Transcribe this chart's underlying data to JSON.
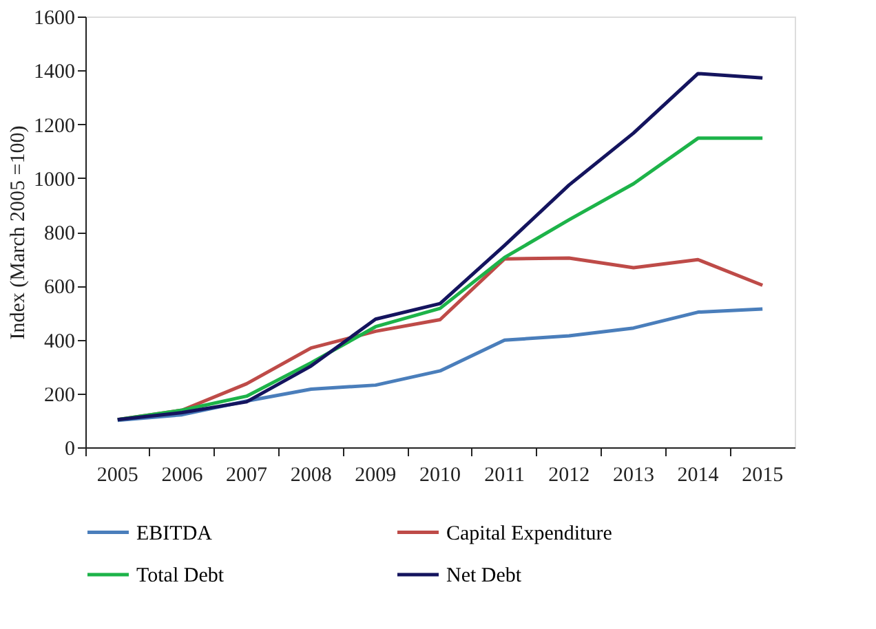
{
  "chart_data": {
    "type": "line",
    "ylabel": "Index (March 2005 =100)",
    "categories": [
      "2005",
      "2006",
      "2007",
      "2008",
      "2009",
      "2010",
      "2011",
      "2012",
      "2013",
      "2014",
      "2015"
    ],
    "ylim": [
      0,
      1600
    ],
    "yticks": [
      0,
      200,
      400,
      600,
      800,
      1000,
      1200,
      1400,
      1600
    ],
    "grid": false,
    "legend": "bottom",
    "marker": "none",
    "line_style": "solid",
    "series": [
      {
        "name": "EBITDA",
        "color": "#4a7ebb",
        "values": [
          100,
          121,
          172,
          216,
          231,
          284,
          398,
          414,
          443,
          502,
          514
        ]
      },
      {
        "name": "Capital Expenditure",
        "color": "#be4b48",
        "values": [
          103,
          138,
          236,
          369,
          431,
          474,
          700,
          703,
          667,
          697,
          602
        ]
      },
      {
        "name": "Total Debt",
        "color": "#1db349",
        "values": [
          103,
          138,
          190,
          314,
          448,
          516,
          705,
          845,
          979,
          1148,
          1148
        ]
      },
      {
        "name": "Net Debt",
        "color": "#14145e",
        "values": [
          103,
          129,
          169,
          302,
          476,
          534,
          750,
          974,
          1167,
          1388,
          1372
        ]
      }
    ]
  }
}
